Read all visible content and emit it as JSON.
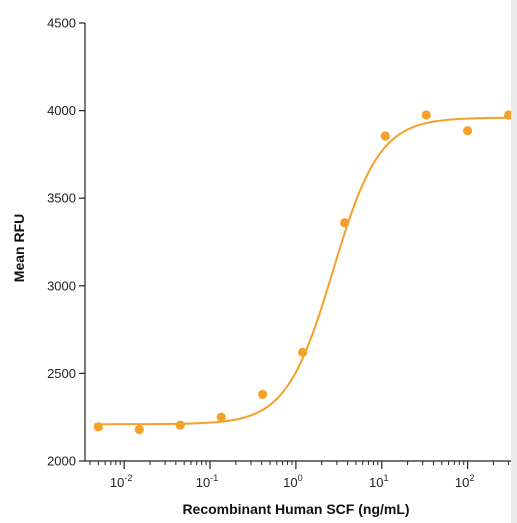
{
  "chart_data": {
    "type": "scatter",
    "title": "",
    "xlabel": "Recombinant Human SCF (ng/mL)",
    "ylabel": "Mean RFU",
    "x_scale": "log",
    "xlim": [
      0.0035,
      320
    ],
    "ylim": [
      2000,
      4500
    ],
    "x_ticks": [
      {
        "value": 0.01,
        "base": "10",
        "exp": "-2"
      },
      {
        "value": 0.1,
        "base": "10",
        "exp": "-1"
      },
      {
        "value": 1,
        "base": "10",
        "exp": "0"
      },
      {
        "value": 10,
        "base": "10",
        "exp": "1"
      },
      {
        "value": 100,
        "base": "10",
        "exp": "2"
      }
    ],
    "y_ticks": [
      "2000",
      "2500",
      "3000",
      "3500",
      "4000",
      "4500"
    ],
    "grid": false,
    "legend": "none",
    "series": [
      {
        "color": "#f5a02a",
        "points": [
          {
            "x": 0.005,
            "y": 2195
          },
          {
            "x": 0.015,
            "y": 2180
          },
          {
            "x": 0.045,
            "y": 2205
          },
          {
            "x": 0.135,
            "y": 2250
          },
          {
            "x": 0.41,
            "y": 2380
          },
          {
            "x": 1.2,
            "y": 2620
          },
          {
            "x": 3.7,
            "y": 3360
          },
          {
            "x": 11,
            "y": 3855
          },
          {
            "x": 33,
            "y": 3975
          },
          {
            "x": 100,
            "y": 3885
          },
          {
            "x": 300,
            "y": 3975
          }
        ],
        "fit": {
          "model": "4PL",
          "bottom": 2210,
          "top": 3960,
          "ec50": 2.7,
          "hill": 1.6
        }
      }
    ]
  }
}
